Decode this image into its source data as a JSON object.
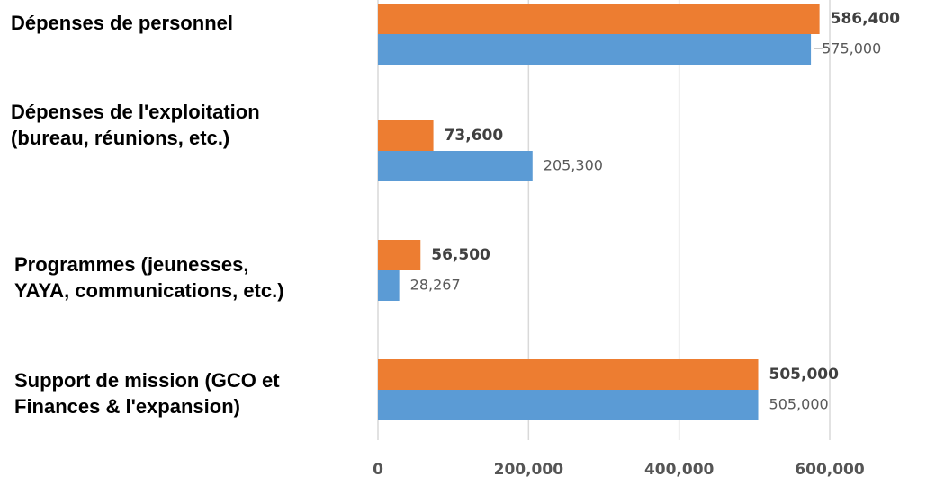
{
  "chart_data": {
    "type": "bar",
    "orientation": "horizontal",
    "categories": [
      [
        "Dépenses de personnel"
      ],
      [
        "Dépenses de l'exploitation",
        "(bureau, réunions, etc.)"
      ],
      [
        "Programmes (jeunesses,",
        "YAYA, communications, etc.)"
      ],
      [
        "Support de mission (GCO et",
        "Finances & l'expansion)"
      ]
    ],
    "series": [
      {
        "values": [
          586400,
          73600,
          56500,
          505000
        ],
        "value_labels": [
          "586,400",
          "73,600",
          "56,500",
          "505,000"
        ],
        "color": "#ED7D31"
      },
      {
        "values": [
          575000,
          205300,
          28267,
          505000
        ],
        "value_labels": [
          "575,000",
          "205,300",
          "28,267",
          "505,000"
        ],
        "color": "#5B9BD5"
      }
    ],
    "xlim": [
      0,
      600000
    ],
    "xticks": [
      0,
      200000,
      400000,
      600000
    ],
    "xtick_labels": [
      "0",
      "200,000",
      "400,000",
      "600,000"
    ],
    "grid": true,
    "legend": "none",
    "gridline_color": "#D9D9D9"
  }
}
